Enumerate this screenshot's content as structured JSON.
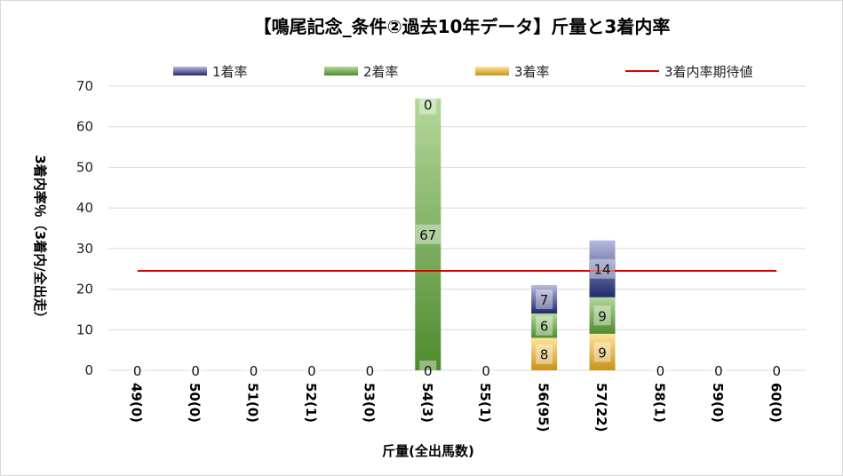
{
  "chart_data": {
    "type": "bar",
    "stacked": true,
    "title": "【鳴尾記念_条件②過去10年データ】斤量と3着内率",
    "xlabel": "斤量(全出馬数)",
    "ylabel": "3着内率％（3着内/全出走）",
    "ylim": [
      0,
      70
    ],
    "yticks": [
      0,
      10,
      20,
      30,
      40,
      50,
      60,
      70
    ],
    "grid": true,
    "legend_position": "top",
    "categories": [
      "49(0)",
      "50(0)",
      "51(0)",
      "52(1)",
      "53(0)",
      "54(3)",
      "55(1)",
      "56(95)",
      "57(22)",
      "58(1)",
      "59(0)",
      "60(0)"
    ],
    "series": [
      {
        "name": "3着率",
        "color": "#d9a21c",
        "values": [
          0,
          0,
          0,
          0,
          0,
          0,
          0,
          8,
          9,
          0,
          0,
          0
        ]
      },
      {
        "name": "2着率",
        "color": "#4e8a2e",
        "values": [
          0,
          0,
          0,
          0,
          0,
          67,
          0,
          6,
          9,
          0,
          0,
          0
        ]
      },
      {
        "name": "1着率",
        "color": "#1f2a6b",
        "values": [
          0,
          0,
          0,
          0,
          0,
          0,
          0,
          7,
          14,
          0,
          0,
          0
        ]
      }
    ],
    "data_labels": [
      {
        "category": "49(0)",
        "position": "bottom",
        "text": "0"
      },
      {
        "category": "50(0)",
        "position": "bottom",
        "text": "0"
      },
      {
        "category": "51(0)",
        "position": "bottom",
        "text": "0"
      },
      {
        "category": "52(1)",
        "position": "bottom",
        "text": "0"
      },
      {
        "category": "53(0)",
        "position": "bottom",
        "text": "0"
      },
      {
        "category": "54(3)",
        "position": "bottom",
        "text": "0"
      },
      {
        "category": "54(3)",
        "position": "middle",
        "text": "67"
      },
      {
        "category": "54(3)",
        "position": "top",
        "text": "0"
      },
      {
        "category": "55(1)",
        "position": "bottom",
        "text": "0"
      },
      {
        "category": "56(95)",
        "position": "s0",
        "text": "8"
      },
      {
        "category": "56(95)",
        "position": "s1",
        "text": "6"
      },
      {
        "category": "56(95)",
        "position": "s2",
        "text": "7"
      },
      {
        "category": "57(22)",
        "position": "s0",
        "text": "9"
      },
      {
        "category": "57(22)",
        "position": "s1",
        "text": "9"
      },
      {
        "category": "57(22)",
        "position": "s2",
        "text": "14"
      },
      {
        "category": "58(1)",
        "position": "bottom",
        "text": "0"
      },
      {
        "category": "59(0)",
        "position": "bottom",
        "text": "0"
      },
      {
        "category": "60(0)",
        "position": "bottom",
        "text": "0"
      }
    ],
    "reference_line": {
      "name": "3着内率期待値",
      "value": 24.5,
      "color": "#e00000"
    },
    "legend": [
      {
        "name": "1着率",
        "color": "#1f2a6b"
      },
      {
        "name": "2着率",
        "color": "#4e8a2e"
      },
      {
        "name": "3着率",
        "color": "#d9a21c"
      },
      {
        "name": "3着内率期待値",
        "color": "#e00000"
      }
    ]
  }
}
